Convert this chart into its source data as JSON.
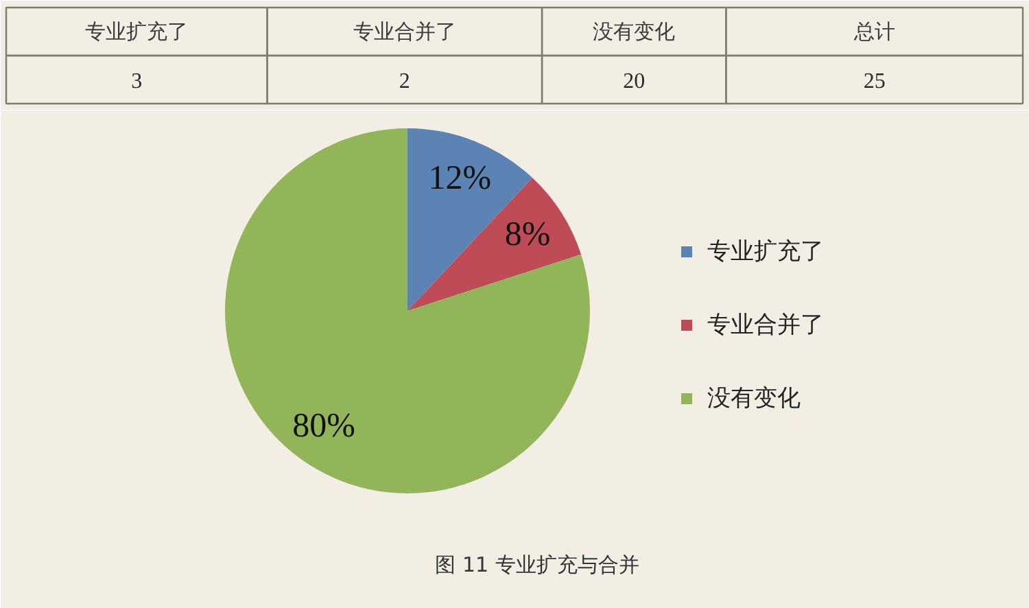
{
  "chart_data": [
    {
      "type": "other",
      "categories": [
        "专业扩充了",
        "专业合并了",
        "没有变化",
        "总计"
      ],
      "values": [
        3,
        2,
        20,
        25
      ],
      "data_labels": true
    },
    {
      "type": "pie",
      "categories": [
        "专业扩充了",
        "专业合并了",
        "没有变化"
      ],
      "values": [
        12,
        8,
        80
      ],
      "colors": [
        "#5b84b5",
        "#be4b55",
        "#92b55a"
      ],
      "value_labels": [
        "12%",
        "8%",
        "80%"
      ],
      "legend": "right",
      "annotations": [
        "图 11 专业扩充与合并"
      ]
    }
  ]
}
